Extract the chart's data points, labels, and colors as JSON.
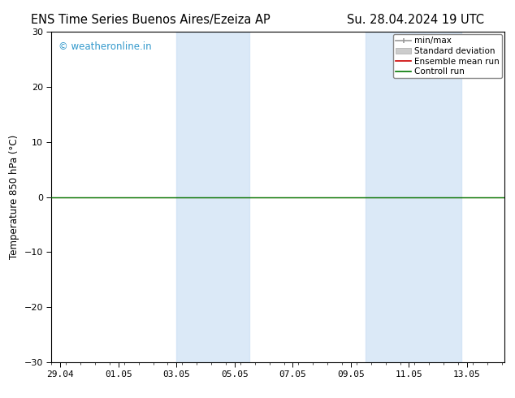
{
  "title_left": "ENS Time Series Buenos Aires/Ezeiza AP",
  "title_right": "Su. 28.04.2024 19 UTC",
  "ylabel": "Temperature 850 hPa (°C)",
  "ylim": [
    -30,
    30
  ],
  "yticks": [
    -30,
    -20,
    -10,
    0,
    10,
    20,
    30
  ],
  "xlim": [
    -0.3,
    15.3
  ],
  "xtick_labels": [
    "29.04",
    "01.05",
    "03.05",
    "05.05",
    "07.05",
    "09.05",
    "11.05",
    "13.05"
  ],
  "xtick_positions": [
    0,
    2,
    4,
    6,
    8,
    10,
    12,
    14
  ],
  "watermark_text": "© weatheronline.in",
  "watermark_color": "#3399cc",
  "background_color": "#ffffff",
  "plot_bg_color": "#ffffff",
  "shading_color": "#cce0f5",
  "shading_alpha": 0.7,
  "shading_ranges": [
    [
      4.0,
      6.5
    ],
    [
      10.5,
      13.8
    ]
  ],
  "control_run_y": 0.0,
  "control_run_color": "#007700",
  "ensemble_mean_color": "#cc0000",
  "min_max_color": "#999999",
  "std_dev_color": "#cccccc",
  "legend_labels": [
    "min/max",
    "Standard deviation",
    "Ensemble mean run",
    "Controll run"
  ],
  "legend_line_colors": [
    "#999999",
    "#cccccc",
    "#cc0000",
    "#007700"
  ],
  "title_fontsize": 10.5,
  "axis_fontsize": 8.5,
  "tick_fontsize": 8,
  "watermark_fontsize": 8.5,
  "legend_fontsize": 7.5
}
